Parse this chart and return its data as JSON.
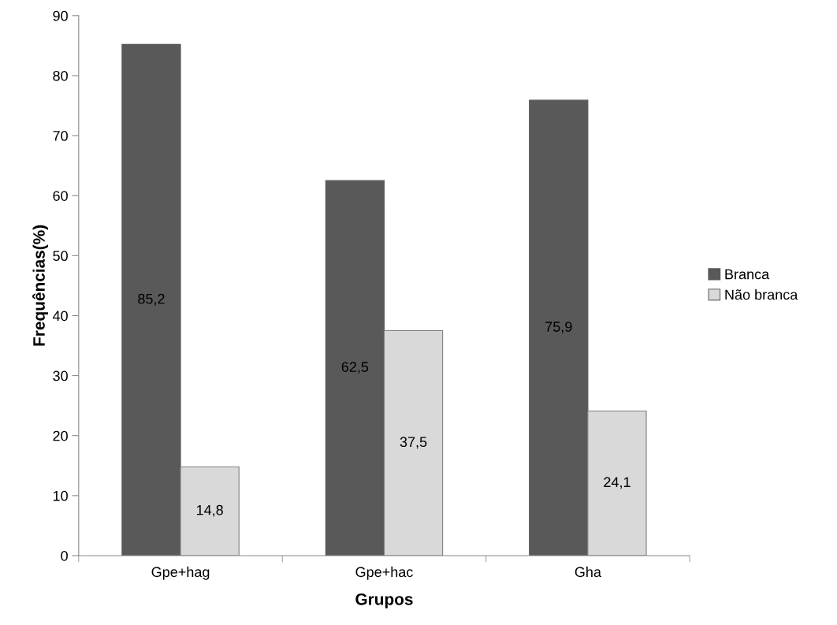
{
  "chart_data": {
    "type": "bar",
    "xlabel": "Grupos",
    "ylabel": "Frequências(%)",
    "categories": [
      "Gpe+hag",
      "Gpe+hac",
      "Gha"
    ],
    "series": [
      {
        "name": "Branca",
        "color": "#595959",
        "values": [
          85.2,
          62.5,
          75.9
        ],
        "value_labels": [
          "85,2",
          "62,5",
          "75,9"
        ]
      },
      {
        "name": "Não branca",
        "color": "#d9d9d9",
        "values": [
          14.8,
          37.5,
          24.1
        ],
        "value_labels": [
          "14,8",
          "37,5",
          "24,1"
        ]
      }
    ],
    "ylim": [
      0,
      90
    ],
    "yticks": [
      0,
      10,
      20,
      30,
      40,
      50,
      60,
      70,
      80,
      90
    ],
    "grid": false,
    "legend": "right"
  }
}
